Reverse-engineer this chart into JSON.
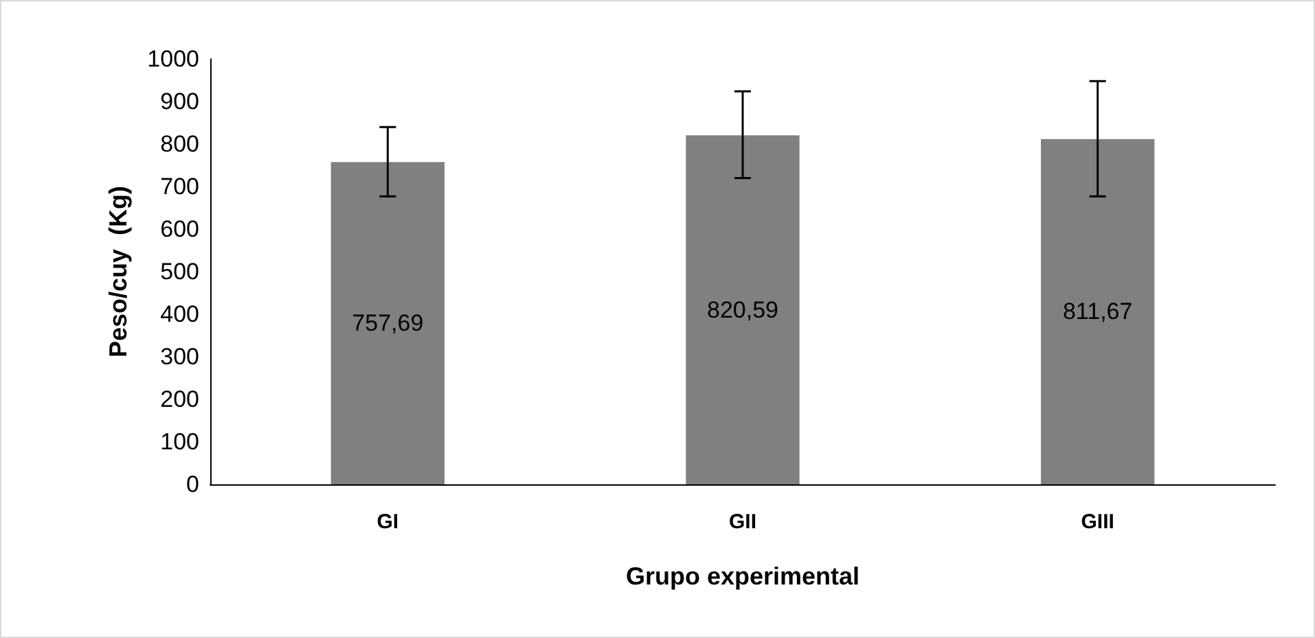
{
  "chart_data": {
    "type": "bar",
    "xlabel": "Grupo experimental",
    "ylabel": "Peso/cuy  (Kg)",
    "categories": [
      "GI",
      "GII",
      "GIII"
    ],
    "values": [
      757.69,
      820.59,
      811.67
    ],
    "value_labels": [
      "757,69",
      "820,59",
      "811,67"
    ],
    "errors": [
      [
        677,
        840
      ],
      [
        720,
        924
      ],
      [
        677,
        948
      ]
    ],
    "color": "#808080",
    "ylim": [
      0,
      1000
    ],
    "yticks": [
      0,
      100,
      200,
      300,
      400,
      500,
      600,
      700,
      800,
      900,
      1000
    ],
    "grid": false
  }
}
